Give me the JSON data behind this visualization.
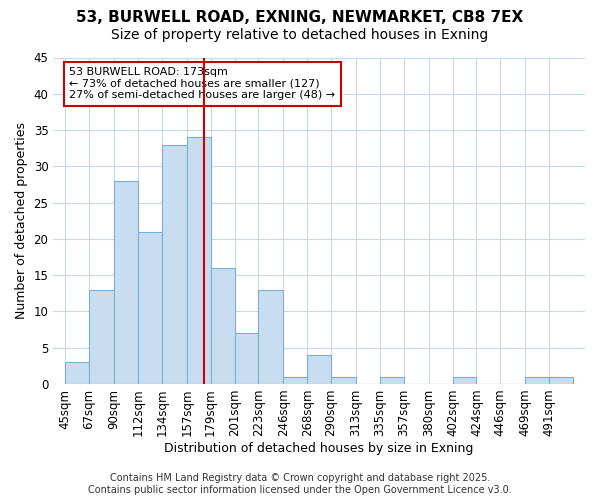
{
  "title1": "53, BURWELL ROAD, EXNING, NEWMARKET, CB8 7EX",
  "title2": "Size of property relative to detached houses in Exning",
  "xlabel": "Distribution of detached houses by size in Exning",
  "ylabel": "Number of detached properties",
  "bins": [
    45,
    67,
    90,
    112,
    134,
    157,
    179,
    201,
    223,
    246,
    268,
    290,
    313,
    335,
    357,
    380,
    402,
    424,
    446,
    469,
    491
  ],
  "values": [
    3,
    13,
    28,
    21,
    33,
    34,
    16,
    7,
    13,
    1,
    4,
    1,
    0,
    1,
    0,
    0,
    1,
    0,
    0,
    1,
    1
  ],
  "bar_color": "#c9ddf0",
  "bar_edge_color": "#7bafd4",
  "background_color": "#ffffff",
  "plot_bg_color": "#ffffff",
  "grid_color": "#c8d8e8",
  "vline_x": 173,
  "vline_color": "#cc0000",
  "annotation_text": "53 BURWELL ROAD: 173sqm\n← 73% of detached houses are smaller (127)\n27% of semi-detached houses are larger (48) →",
  "annotation_box_color": "#ffffff",
  "annotation_box_edge": "#cc0000",
  "ylim": [
    0,
    45
  ],
  "yticks": [
    0,
    5,
    10,
    15,
    20,
    25,
    30,
    35,
    40,
    45
  ],
  "footer": "Contains HM Land Registry data © Crown copyright and database right 2025.\nContains public sector information licensed under the Open Government Licence v3.0.",
  "title_fontsize": 11,
  "subtitle_fontsize": 10,
  "axis_fontsize": 9,
  "tick_fontsize": 8.5,
  "footer_fontsize": 7
}
